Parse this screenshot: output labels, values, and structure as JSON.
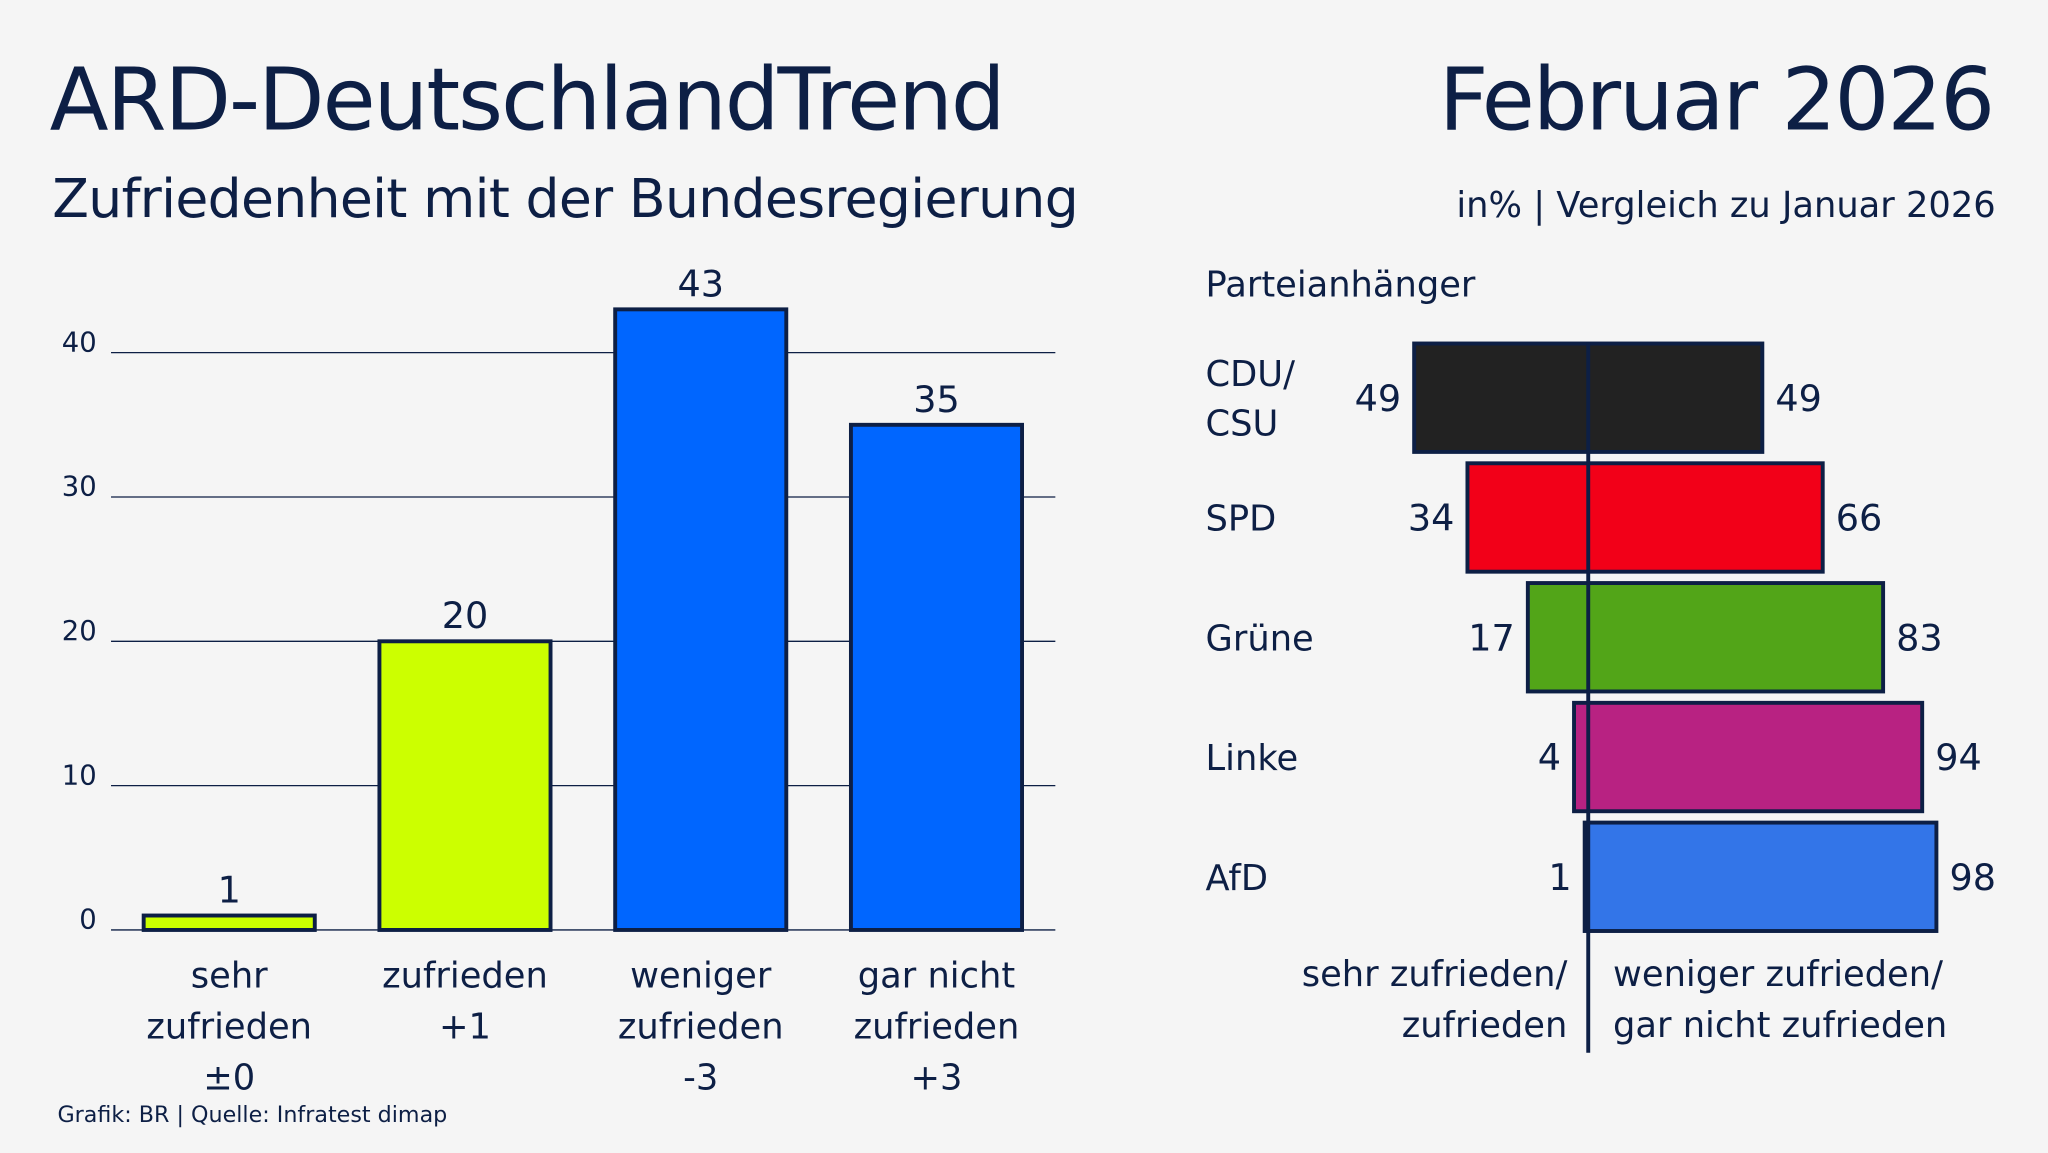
{
  "header": {
    "title": "ARD-DeutschlandTrend",
    "subtitle": "Zufriedenheit mit der Bundesregierung",
    "date": "Februar 2026",
    "unit_note": "in% | Vergleich zu Januar 2026"
  },
  "footer": "Grafik: BR | Quelle: Infratest dimap",
  "colors": {
    "text": "#0d1f45",
    "background": "#f5f5f5",
    "satisfied": "#ccff00",
    "dissatisfied": "#0066ff"
  },
  "chart_data": [
    {
      "type": "bar",
      "categories": [
        {
          "lines": [
            "sehr",
            "zufrieden",
            "±0"
          ]
        },
        {
          "lines": [
            "zufrieden",
            "+1"
          ]
        },
        {
          "lines": [
            "weniger",
            "zufrieden",
            "-3"
          ]
        },
        {
          "lines": [
            "gar nicht",
            "zufrieden",
            "+3"
          ]
        }
      ],
      "values": [
        1,
        20,
        43,
        35
      ],
      "bar_colors": [
        "#ccff00",
        "#ccff00",
        "#0066ff",
        "#0066ff"
      ],
      "yticks": [
        0,
        10,
        20,
        30,
        40
      ],
      "ylim": [
        0,
        43
      ],
      "grid": true
    },
    {
      "type": "bar",
      "orientation": "horizontal-diverging",
      "title": "Parteianhänger",
      "categories": [
        {
          "lines": [
            "CDU/",
            "CSU"
          ]
        },
        {
          "lines": [
            "SPD"
          ]
        },
        {
          "lines": [
            "Grüne"
          ]
        },
        {
          "lines": [
            "Linke"
          ]
        },
        {
          "lines": [
            "AfD"
          ]
        }
      ],
      "series": [
        {
          "values": [
            49,
            34,
            17,
            4,
            1
          ]
        },
        {
          "values": [
            49,
            66,
            83,
            94,
            98
          ]
        }
      ],
      "bar_colors": [
        "#222222",
        "#f20018",
        "#52a518",
        "#b82282",
        "#3375e8"
      ],
      "axis_labels": {
        "left": [
          "sehr zufrieden/",
          "zufrieden"
        ],
        "right": [
          "weniger zufrieden/",
          "gar nicht zufrieden"
        ]
      }
    }
  ]
}
